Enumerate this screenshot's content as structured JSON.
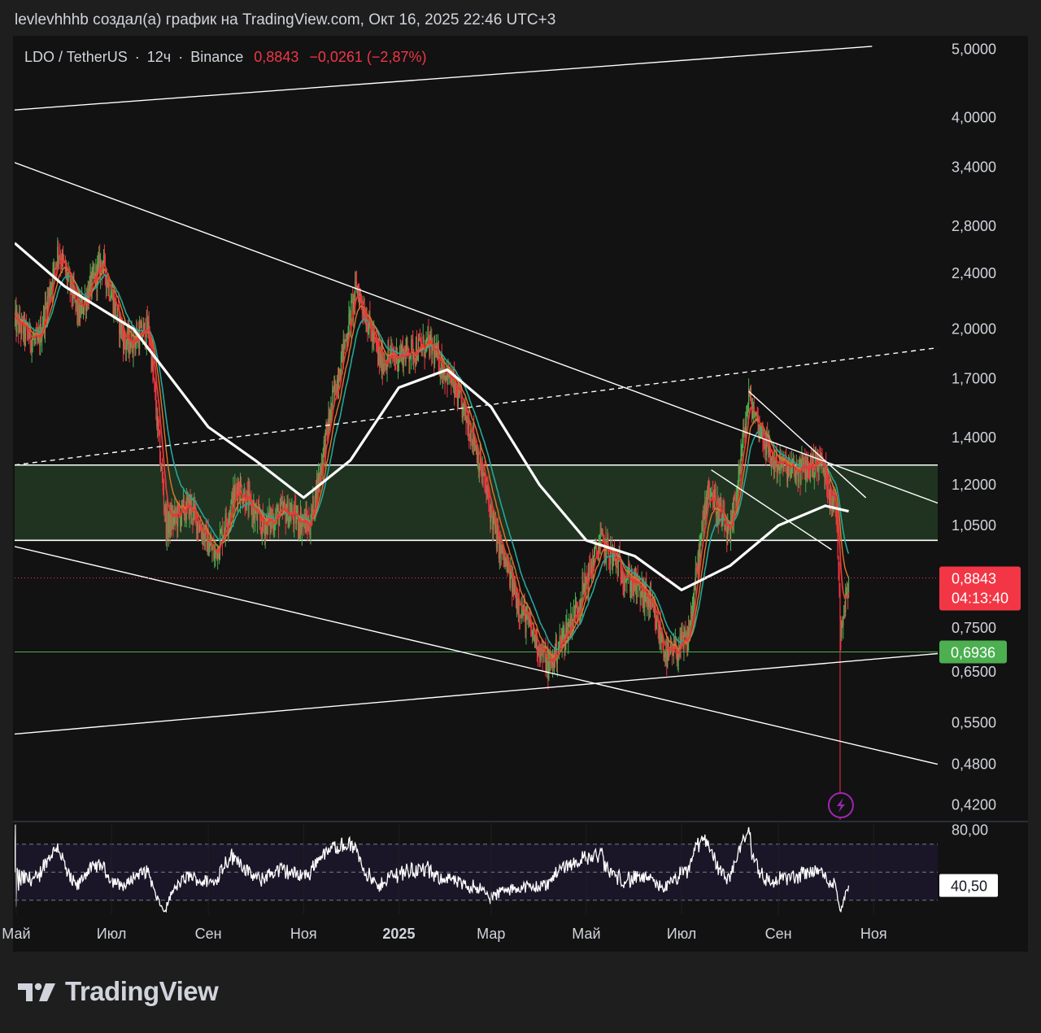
{
  "header": {
    "attribution": "levlevhhhb создал(а) график на TradingView.com, Окт 16, 2025 22:46 UTC+3"
  },
  "legend": {
    "symbol": "LDO / TetherUS",
    "interval": "12ч",
    "exchange": "Binance",
    "sep": "·",
    "price": "0,8843",
    "change": "−0,0261 (−2,87%)"
  },
  "price_tag": {
    "value": "0,8843",
    "countdown": "04:13:40",
    "color": "#f23645"
  },
  "level_tag": {
    "value": "0,6936",
    "color": "#4caf50"
  },
  "rsi_tag": {
    "value": "40,50"
  },
  "branding": {
    "name": "TradingView"
  },
  "colors": {
    "background": "#121212",
    "candle_up": "#4caf50",
    "candle_down": "#f23645",
    "ema_fast": "#e53935",
    "ema_mid": "#e0762a",
    "ema_teal": "#26a69a",
    "ma_slow": "#ffffff",
    "zone_fill": "#1f3320",
    "rsi_band": "#1a1628",
    "alert_icon": "#9c27b0"
  },
  "chart_data": {
    "type": "candlestick",
    "symbol": "LDO / TetherUS",
    "interval": "12ч",
    "scale": "log",
    "ylim": [
      0.4,
      5.2
    ],
    "y_ticks": [
      {
        "label": "5,0000",
        "v": 5.0
      },
      {
        "label": "4,0000",
        "v": 4.0
      },
      {
        "label": "3,4000",
        "v": 3.4
      },
      {
        "label": "2,8000",
        "v": 2.8
      },
      {
        "label": "2,4000",
        "v": 2.4
      },
      {
        "label": "2,0000",
        "v": 2.0
      },
      {
        "label": "1,7000",
        "v": 1.7
      },
      {
        "label": "1,4000",
        "v": 1.4
      },
      {
        "label": "1,2000",
        "v": 1.2
      },
      {
        "label": "1,0500",
        "v": 1.05
      },
      {
        "label": "0,7500",
        "v": 0.75
      },
      {
        "label": "0,6500",
        "v": 0.65
      },
      {
        "label": "0,5500",
        "v": 0.55
      },
      {
        "label": "0,4800",
        "v": 0.48
      },
      {
        "label": "0,4200",
        "v": 0.42
      }
    ],
    "x_ticks": [
      {
        "label": "Май",
        "date": "2024-05-01"
      },
      {
        "label": "Июл",
        "date": "2024-07-01"
      },
      {
        "label": "Сен",
        "date": "2024-09-01"
      },
      {
        "label": "Ноя",
        "date": "2024-11-01"
      },
      {
        "label": "2025",
        "date": "2025-01-01",
        "bold": true
      },
      {
        "label": "Мар",
        "date": "2025-03-01"
      },
      {
        "label": "Май",
        "date": "2025-05-01"
      },
      {
        "label": "Июл",
        "date": "2025-07-01"
      },
      {
        "label": "Сен",
        "date": "2025-09-01"
      },
      {
        "label": "Ноя",
        "date": "2025-11-01"
      }
    ],
    "x_range": [
      "2024-04-30",
      "2025-12-12"
    ],
    "close_series": [
      {
        "date": "2024-04-30",
        "v": 2.05
      },
      {
        "date": "2024-05-15",
        "v": 1.9
      },
      {
        "date": "2024-05-28",
        "v": 2.6
      },
      {
        "date": "2024-06-10",
        "v": 2.1
      },
      {
        "date": "2024-06-25",
        "v": 2.5
      },
      {
        "date": "2024-07-10",
        "v": 1.9
      },
      {
        "date": "2024-07-25",
        "v": 2.0
      },
      {
        "date": "2024-08-05",
        "v": 1.05
      },
      {
        "date": "2024-08-20",
        "v": 1.12
      },
      {
        "date": "2024-09-05",
        "v": 0.95
      },
      {
        "date": "2024-09-20",
        "v": 1.2
      },
      {
        "date": "2024-10-05",
        "v": 1.05
      },
      {
        "date": "2024-10-20",
        "v": 1.1
      },
      {
        "date": "2024-11-05",
        "v": 1.05
      },
      {
        "date": "2024-11-20",
        "v": 1.6
      },
      {
        "date": "2024-12-05",
        "v": 2.3
      },
      {
        "date": "2024-12-20",
        "v": 1.8
      },
      {
        "date": "2025-01-05",
        "v": 1.85
      },
      {
        "date": "2025-01-20",
        "v": 1.9
      },
      {
        "date": "2025-02-03",
        "v": 1.7
      },
      {
        "date": "2025-02-18",
        "v": 1.4
      },
      {
        "date": "2025-03-05",
        "v": 1.0
      },
      {
        "date": "2025-03-20",
        "v": 0.8
      },
      {
        "date": "2025-04-07",
        "v": 0.66
      },
      {
        "date": "2025-04-25",
        "v": 0.8
      },
      {
        "date": "2025-05-10",
        "v": 1.0
      },
      {
        "date": "2025-05-25",
        "v": 0.9
      },
      {
        "date": "2025-06-10",
        "v": 0.82
      },
      {
        "date": "2025-06-22",
        "v": 0.68
      },
      {
        "date": "2025-07-05",
        "v": 0.72
      },
      {
        "date": "2025-07-18",
        "v": 1.2
      },
      {
        "date": "2025-08-01",
        "v": 1.0
      },
      {
        "date": "2025-08-13",
        "v": 1.6
      },
      {
        "date": "2025-08-28",
        "v": 1.3
      },
      {
        "date": "2025-09-12",
        "v": 1.25
      },
      {
        "date": "2025-09-28",
        "v": 1.3
      },
      {
        "date": "2025-10-08",
        "v": 1.1
      },
      {
        "date": "2025-10-11",
        "v": 0.75
      },
      {
        "date": "2025-10-16",
        "v": 0.8843
      }
    ],
    "wick_low_oct_11": 0.4,
    "ma_slow": [
      {
        "date": "2024-04-30",
        "v": 2.65
      },
      {
        "date": "2024-06-01",
        "v": 2.3
      },
      {
        "date": "2024-07-15",
        "v": 2.0
      },
      {
        "date": "2024-09-01",
        "v": 1.45
      },
      {
        "date": "2024-10-01",
        "v": 1.3
      },
      {
        "date": "2024-11-01",
        "v": 1.15
      },
      {
        "date": "2024-12-01",
        "v": 1.3
      },
      {
        "date": "2025-01-01",
        "v": 1.65
      },
      {
        "date": "2025-02-01",
        "v": 1.75
      },
      {
        "date": "2025-03-01",
        "v": 1.55
      },
      {
        "date": "2025-04-01",
        "v": 1.2
      },
      {
        "date": "2025-05-01",
        "v": 1.0
      },
      {
        "date": "2025-06-01",
        "v": 0.95
      },
      {
        "date": "2025-07-01",
        "v": 0.85
      },
      {
        "date": "2025-08-01",
        "v": 0.92
      },
      {
        "date": "2025-09-01",
        "v": 1.05
      },
      {
        "date": "2025-10-01",
        "v": 1.12
      },
      {
        "date": "2025-10-16",
        "v": 1.1
      }
    ],
    "horizontal_levels": [
      {
        "name": "zone_top",
        "v": 1.28
      },
      {
        "name": "zone_bottom",
        "v": 1.0
      },
      {
        "name": "support",
        "v": 0.6936
      }
    ],
    "trendlines": [
      {
        "style": "solid",
        "from": {
          "date": "2024-04-30",
          "v": 4.1
        },
        "to": {
          "date": "2025-10-31",
          "v": 5.05
        }
      },
      {
        "style": "solid",
        "from": {
          "date": "2024-04-30",
          "v": 3.45
        },
        "to": {
          "date": "2025-12-12",
          "v": 1.13
        }
      },
      {
        "style": "dashed",
        "from": {
          "date": "2024-04-30",
          "v": 1.28
        },
        "to": {
          "date": "2025-12-12",
          "v": 1.88
        }
      },
      {
        "style": "solid",
        "from": {
          "date": "2024-04-30",
          "v": 0.98
        },
        "to": {
          "date": "2025-12-12",
          "v": 0.48
        }
      },
      {
        "style": "solid",
        "from": {
          "date": "2024-04-30",
          "v": 0.53
        },
        "to": {
          "date": "2025-12-12",
          "v": 0.69
        }
      },
      {
        "style": "solid",
        "from": {
          "date": "2025-08-13",
          "v": 1.63
        },
        "to": {
          "date": "2025-10-27",
          "v": 1.15
        }
      },
      {
        "style": "solid",
        "from": {
          "date": "2025-07-20",
          "v": 1.26
        },
        "to": {
          "date": "2025-10-05",
          "v": 0.97
        }
      }
    ],
    "rsi": {
      "labels": [
        {
          "label": "80,00",
          "v": 80
        }
      ],
      "upper": 70,
      "lower": 30,
      "mid": 50,
      "ylim": [
        20,
        85
      ],
      "current": 40.5
    }
  }
}
